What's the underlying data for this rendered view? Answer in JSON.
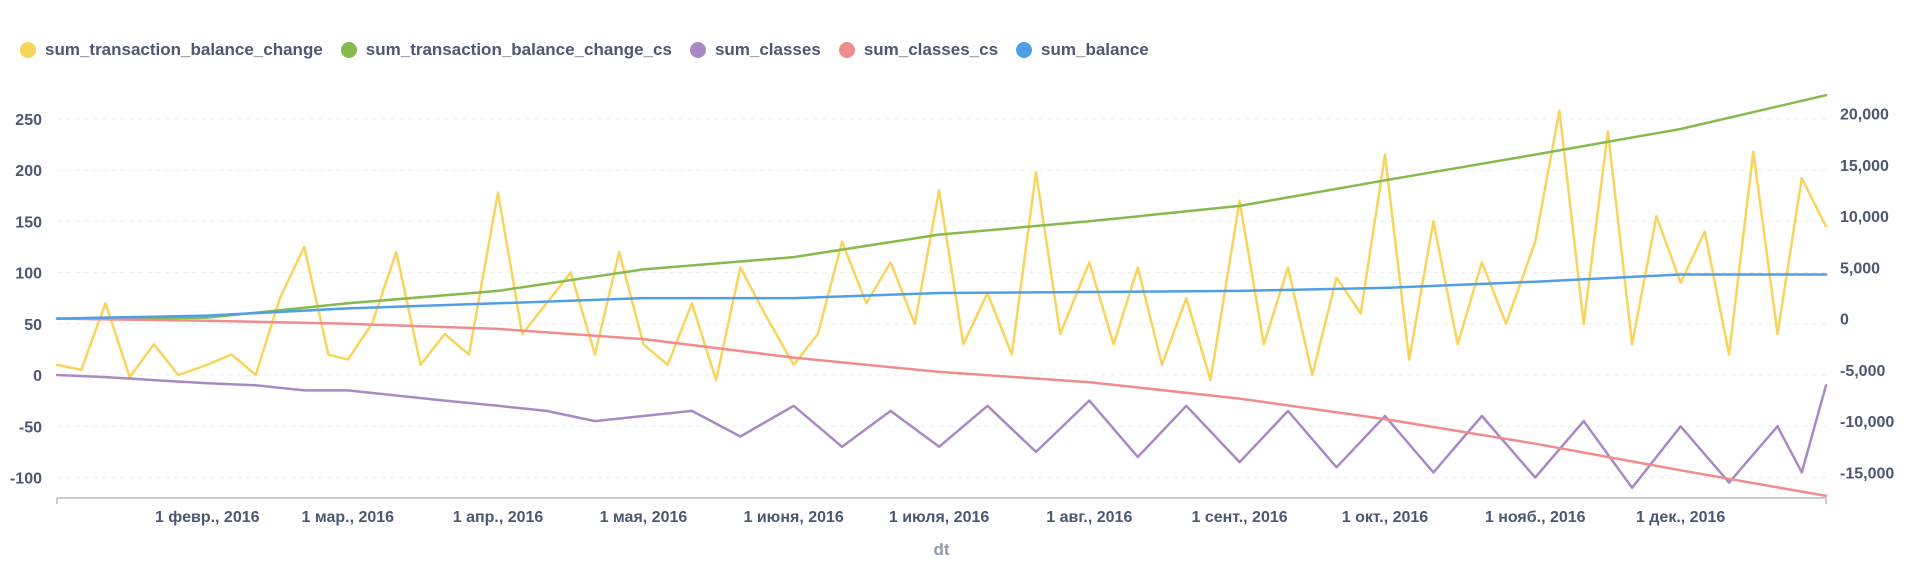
{
  "chart_data": {
    "type": "line",
    "xlabel": "dt",
    "x_range": [
      "2016-01-01",
      "2016-12-31"
    ],
    "x_ticks": [
      {
        "date": "2016-02-01",
        "label": "1 февр., 2016"
      },
      {
        "date": "2016-03-01",
        "label": "1 мар., 2016"
      },
      {
        "date": "2016-04-01",
        "label": "1 апр., 2016"
      },
      {
        "date": "2016-05-01",
        "label": "1 мая, 2016"
      },
      {
        "date": "2016-06-01",
        "label": "1 июня, 2016"
      },
      {
        "date": "2016-07-01",
        "label": "1 июля, 2016"
      },
      {
        "date": "2016-08-01",
        "label": "1 авг., 2016"
      },
      {
        "date": "2016-09-01",
        "label": "1 сент., 2016"
      },
      {
        "date": "2016-10-01",
        "label": "1 окт., 2016"
      },
      {
        "date": "2016-11-01",
        "label": "1 нояб., 2016"
      },
      {
        "date": "2016-12-01",
        "label": "1 дек., 2016"
      }
    ],
    "y_left": {
      "ylim": [
        -120,
        280
      ],
      "ticks": [
        -100,
        -50,
        0,
        50,
        100,
        150,
        200,
        250
      ],
      "tick_labels": [
        "-100",
        "-50",
        "0",
        "50",
        "100",
        "150",
        "200",
        "250"
      ]
    },
    "y_right": {
      "ylim": [
        -17500,
        22500
      ],
      "ticks": [
        -15000,
        -10000,
        -5000,
        0,
        5000,
        10000,
        15000,
        20000
      ],
      "tick_labels": [
        "-15,000",
        "-10,000",
        "-5,000",
        "0",
        "5,000",
        "10,000",
        "15,000",
        "20,000"
      ]
    },
    "grid": true,
    "legend_position": "top-left",
    "series": [
      {
        "name": "sum_transaction_balance_change",
        "color": "#f9d45c",
        "axis": "left",
        "points": [
          [
            "2016-01-01",
            10
          ],
          [
            "2016-01-06",
            5
          ],
          [
            "2016-01-11",
            70
          ],
          [
            "2016-01-16",
            -2
          ],
          [
            "2016-01-21",
            30
          ],
          [
            "2016-01-26",
            0
          ],
          [
            "2016-02-01",
            10
          ],
          [
            "2016-02-06",
            20
          ],
          [
            "2016-02-11",
            0
          ],
          [
            "2016-02-16",
            75
          ],
          [
            "2016-02-21",
            125
          ],
          [
            "2016-02-26",
            20
          ],
          [
            "2016-03-01",
            15
          ],
          [
            "2016-03-06",
            50
          ],
          [
            "2016-03-11",
            120
          ],
          [
            "2016-03-16",
            10
          ],
          [
            "2016-03-21",
            40
          ],
          [
            "2016-03-26",
            20
          ],
          [
            "2016-04-01",
            178
          ],
          [
            "2016-04-06",
            40
          ],
          [
            "2016-04-11",
            70
          ],
          [
            "2016-04-16",
            100
          ],
          [
            "2016-04-21",
            20
          ],
          [
            "2016-04-26",
            120
          ],
          [
            "2016-05-01",
            30
          ],
          [
            "2016-05-06",
            10
          ],
          [
            "2016-05-11",
            70
          ],
          [
            "2016-05-16",
            -5
          ],
          [
            "2016-05-21",
            105
          ],
          [
            "2016-05-26",
            60
          ],
          [
            "2016-06-01",
            10
          ],
          [
            "2016-06-06",
            40
          ],
          [
            "2016-06-11",
            130
          ],
          [
            "2016-06-16",
            70
          ],
          [
            "2016-06-21",
            110
          ],
          [
            "2016-06-26",
            50
          ],
          [
            "2016-07-01",
            180
          ],
          [
            "2016-07-06",
            30
          ],
          [
            "2016-07-11",
            80
          ],
          [
            "2016-07-16",
            20
          ],
          [
            "2016-07-21",
            198
          ],
          [
            "2016-07-26",
            40
          ],
          [
            "2016-08-01",
            110
          ],
          [
            "2016-08-06",
            30
          ],
          [
            "2016-08-11",
            105
          ],
          [
            "2016-08-16",
            10
          ],
          [
            "2016-08-21",
            75
          ],
          [
            "2016-08-26",
            -5
          ],
          [
            "2016-09-01",
            170
          ],
          [
            "2016-09-06",
            30
          ],
          [
            "2016-09-11",
            105
          ],
          [
            "2016-09-16",
            0
          ],
          [
            "2016-09-21",
            95
          ],
          [
            "2016-09-26",
            60
          ],
          [
            "2016-10-01",
            215
          ],
          [
            "2016-10-06",
            15
          ],
          [
            "2016-10-11",
            150
          ],
          [
            "2016-10-16",
            30
          ],
          [
            "2016-10-21",
            110
          ],
          [
            "2016-10-26",
            50
          ],
          [
            "2016-11-01",
            130
          ],
          [
            "2016-11-06",
            258
          ],
          [
            "2016-11-11",
            50
          ],
          [
            "2016-11-16",
            238
          ],
          [
            "2016-11-21",
            30
          ],
          [
            "2016-11-26",
            155
          ],
          [
            "2016-12-01",
            90
          ],
          [
            "2016-12-06",
            140
          ],
          [
            "2016-12-11",
            20
          ],
          [
            "2016-12-16",
            218
          ],
          [
            "2016-12-21",
            40
          ],
          [
            "2016-12-26",
            192
          ],
          [
            "2016-12-31",
            145
          ]
        ]
      },
      {
        "name": "sum_transaction_balance_change_cs",
        "color": "#84bb4c",
        "axis": "right",
        "points": [
          [
            "2016-01-01",
            0
          ],
          [
            "2016-02-01",
            100
          ],
          [
            "2016-03-01",
            1500
          ],
          [
            "2016-04-01",
            2700
          ],
          [
            "2016-05-01",
            4800
          ],
          [
            "2016-06-01",
            6000
          ],
          [
            "2016-07-01",
            8200
          ],
          [
            "2016-08-01",
            9500
          ],
          [
            "2016-09-01",
            11000
          ],
          [
            "2016-10-01",
            13500
          ],
          [
            "2016-11-01",
            16000
          ],
          [
            "2016-12-01",
            18500
          ],
          [
            "2016-12-31",
            21800
          ]
        ]
      },
      {
        "name": "sum_classes",
        "color": "#a989c5",
        "axis": "left",
        "points": [
          [
            "2016-01-01",
            0
          ],
          [
            "2016-01-11",
            -2
          ],
          [
            "2016-01-21",
            -5
          ],
          [
            "2016-02-01",
            -8
          ],
          [
            "2016-02-11",
            -10
          ],
          [
            "2016-02-21",
            -15
          ],
          [
            "2016-03-01",
            -15
          ],
          [
            "2016-03-11",
            -20
          ],
          [
            "2016-03-21",
            -25
          ],
          [
            "2016-04-01",
            -30
          ],
          [
            "2016-04-11",
            -35
          ],
          [
            "2016-04-21",
            -45
          ],
          [
            "2016-05-01",
            -40
          ],
          [
            "2016-05-11",
            -35
          ],
          [
            "2016-05-21",
            -60
          ],
          [
            "2016-06-01",
            -30
          ],
          [
            "2016-06-11",
            -70
          ],
          [
            "2016-06-21",
            -35
          ],
          [
            "2016-07-01",
            -70
          ],
          [
            "2016-07-11",
            -30
          ],
          [
            "2016-07-21",
            -75
          ],
          [
            "2016-08-01",
            -25
          ],
          [
            "2016-08-11",
            -80
          ],
          [
            "2016-08-21",
            -30
          ],
          [
            "2016-09-01",
            -85
          ],
          [
            "2016-09-11",
            -35
          ],
          [
            "2016-09-21",
            -90
          ],
          [
            "2016-10-01",
            -40
          ],
          [
            "2016-10-11",
            -95
          ],
          [
            "2016-10-21",
            -40
          ],
          [
            "2016-11-01",
            -100
          ],
          [
            "2016-11-11",
            -45
          ],
          [
            "2016-11-21",
            -110
          ],
          [
            "2016-12-01",
            -50
          ],
          [
            "2016-12-11",
            -105
          ],
          [
            "2016-12-21",
            -50
          ],
          [
            "2016-12-26",
            -95
          ],
          [
            "2016-12-31",
            -10
          ]
        ]
      },
      {
        "name": "sum_classes_cs",
        "color": "#ef8c8c",
        "axis": "right",
        "points": [
          [
            "2016-01-01",
            0
          ],
          [
            "2016-02-01",
            -200
          ],
          [
            "2016-03-01",
            -500
          ],
          [
            "2016-04-01",
            -1000
          ],
          [
            "2016-05-01",
            -2000
          ],
          [
            "2016-06-01",
            -3800
          ],
          [
            "2016-07-01",
            -5200
          ],
          [
            "2016-08-01",
            -6200
          ],
          [
            "2016-09-01",
            -7800
          ],
          [
            "2016-10-01",
            -9800
          ],
          [
            "2016-11-01",
            -12200
          ],
          [
            "2016-12-01",
            -14800
          ],
          [
            "2016-12-31",
            -17300
          ]
        ]
      },
      {
        "name": "sum_balance",
        "color": "#509ee3",
        "axis": "right",
        "points": [
          [
            "2016-01-01",
            0
          ],
          [
            "2016-02-01",
            300
          ],
          [
            "2016-03-01",
            1000
          ],
          [
            "2016-04-01",
            1500
          ],
          [
            "2016-05-01",
            2000
          ],
          [
            "2016-06-01",
            2000
          ],
          [
            "2016-07-01",
            2500
          ],
          [
            "2016-08-01",
            2600
          ],
          [
            "2016-09-01",
            2700
          ],
          [
            "2016-10-01",
            3000
          ],
          [
            "2016-11-01",
            3600
          ],
          [
            "2016-12-01",
            4300
          ],
          [
            "2016-12-31",
            4300
          ]
        ]
      }
    ]
  }
}
